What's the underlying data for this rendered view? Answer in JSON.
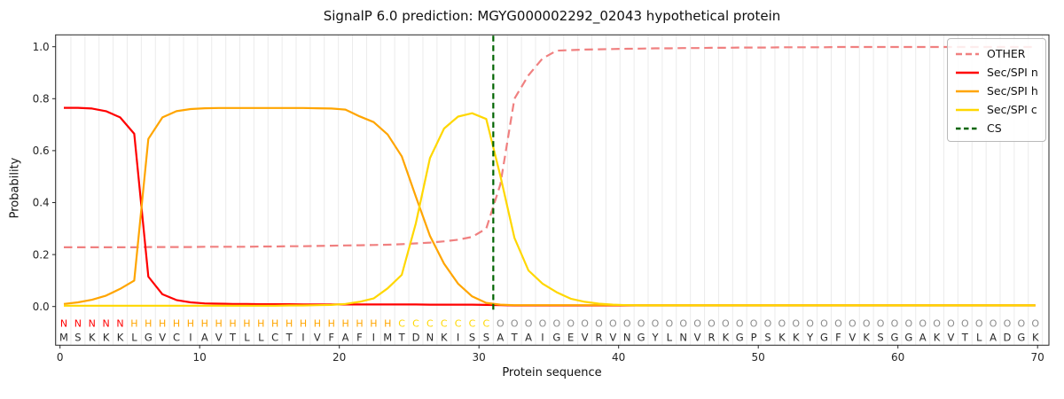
{
  "figure": {
    "title": "SignalP 6.0 prediction: MGYG000002292_02043 hypothetical protein",
    "xlabel": "Protein sequence",
    "ylabel": "Probability"
  },
  "chart_data": {
    "type": "line",
    "title": "SignalP 6.0 prediction: MGYG000002292_02043 hypothetical protein",
    "xlabel": "Protein sequence",
    "ylabel": "Probability",
    "x_ticks": [
      0,
      10,
      20,
      30,
      40,
      50,
      60,
      70
    ],
    "y_ticks": [
      0.0,
      0.2,
      0.4,
      0.6,
      0.8,
      1.0
    ],
    "ylim": [
      0.0,
      1.0
    ],
    "grid": "vertical-per-residue",
    "legend_position": "upper right",
    "n_residues": 70,
    "cs_position": 31.5,
    "sequence": "MSKKKLGVCIAVTLLCTIVFAFIMTDNKISSATAIGEVRVNGYLNVRKGPSKKYGFVKSGGAKVTLADGK",
    "region_labels": "NNNNNHHHHHHHHHHHHHHHHHHHCCCCCCCOOOOOOOOOOOOOOOOOOOOOOOOOOOOOOOOOOOOOO",
    "regions": [
      {
        "label": "N",
        "start": 1,
        "end": 5,
        "color": "#ff0000"
      },
      {
        "label": "H",
        "start": 6,
        "end": 24,
        "color": "#ffa500"
      },
      {
        "label": "C",
        "start": 25,
        "end": 31,
        "color": "#ffd700"
      },
      {
        "label": "O",
        "start": 32,
        "end": 70,
        "color": "#8c8c8c"
      }
    ],
    "series": [
      {
        "name": "OTHER",
        "color": "#f08080",
        "style": "dashed",
        "values": [
          0.228,
          0.228,
          0.228,
          0.228,
          0.228,
          0.228,
          0.229,
          0.229,
          0.229,
          0.229,
          0.23,
          0.23,
          0.23,
          0.23,
          0.231,
          0.231,
          0.232,
          0.232,
          0.233,
          0.234,
          0.235,
          0.236,
          0.237,
          0.238,
          0.24,
          0.243,
          0.246,
          0.251,
          0.257,
          0.268,
          0.3,
          0.47,
          0.8,
          0.89,
          0.955,
          0.985,
          0.987,
          0.989,
          0.99,
          0.991,
          0.992,
          0.993,
          0.994,
          0.994,
          0.995,
          0.995,
          0.996,
          0.996,
          0.997,
          0.997,
          0.997,
          0.998,
          0.998,
          0.998,
          0.998,
          0.999,
          0.999,
          0.999,
          0.999,
          0.999,
          0.999,
          0.999,
          0.999,
          0.999,
          0.999,
          0.999,
          0.999,
          0.999,
          0.999,
          0.999
        ]
      },
      {
        "name": "Sec/SPI n",
        "color": "#ff0000",
        "style": "solid",
        "values": [
          0.765,
          0.765,
          0.762,
          0.752,
          0.728,
          0.665,
          0.115,
          0.047,
          0.025,
          0.016,
          0.012,
          0.011,
          0.01,
          0.01,
          0.009,
          0.009,
          0.009,
          0.008,
          0.008,
          0.008,
          0.008,
          0.008,
          0.008,
          0.008,
          0.008,
          0.008,
          0.007,
          0.007,
          0.007,
          0.007,
          0.006,
          0.005,
          0.004,
          0.004,
          0.004,
          0.004,
          0.004,
          0.004,
          0.004,
          0.004,
          0.004,
          0.004,
          0.004,
          0.004,
          0.004,
          0.004,
          0.004,
          0.004,
          0.004,
          0.004,
          0.004,
          0.004,
          0.004,
          0.004,
          0.004,
          0.004,
          0.004,
          0.004,
          0.004,
          0.004,
          0.004,
          0.004,
          0.004,
          0.004,
          0.004,
          0.004,
          0.004,
          0.004,
          0.004,
          0.004
        ]
      },
      {
        "name": "Sec/SPI h",
        "color": "#ffa500",
        "style": "solid",
        "values": [
          0.01,
          0.016,
          0.026,
          0.042,
          0.068,
          0.1,
          0.645,
          0.728,
          0.752,
          0.76,
          0.763,
          0.764,
          0.764,
          0.764,
          0.764,
          0.764,
          0.764,
          0.764,
          0.763,
          0.762,
          0.758,
          0.732,
          0.71,
          0.662,
          0.578,
          0.423,
          0.272,
          0.165,
          0.088,
          0.039,
          0.014,
          0.007,
          0.005,
          0.005,
          0.005,
          0.005,
          0.005,
          0.005,
          0.005,
          0.005,
          0.005,
          0.005,
          0.005,
          0.005,
          0.005,
          0.005,
          0.005,
          0.005,
          0.005,
          0.005,
          0.005,
          0.005,
          0.005,
          0.005,
          0.005,
          0.005,
          0.005,
          0.005,
          0.005,
          0.005,
          0.005,
          0.005,
          0.005,
          0.005,
          0.005,
          0.005,
          0.005,
          0.005,
          0.005,
          0.005
        ]
      },
      {
        "name": "Sec/SPI c",
        "color": "#ffd700",
        "style": "solid",
        "values": [
          0.003,
          0.003,
          0.003,
          0.003,
          0.003,
          0.003,
          0.003,
          0.003,
          0.003,
          0.003,
          0.003,
          0.003,
          0.003,
          0.003,
          0.003,
          0.003,
          0.004,
          0.004,
          0.005,
          0.006,
          0.01,
          0.018,
          0.031,
          0.07,
          0.122,
          0.32,
          0.571,
          0.685,
          0.731,
          0.744,
          0.722,
          0.503,
          0.264,
          0.139,
          0.088,
          0.055,
          0.03,
          0.018,
          0.011,
          0.007,
          0.005,
          0.004,
          0.004,
          0.004,
          0.004,
          0.004,
          0.004,
          0.004,
          0.004,
          0.004,
          0.004,
          0.004,
          0.004,
          0.004,
          0.004,
          0.004,
          0.004,
          0.004,
          0.004,
          0.004,
          0.004,
          0.004,
          0.004,
          0.004,
          0.004,
          0.004,
          0.004,
          0.004,
          0.004,
          0.004
        ]
      },
      {
        "name": "CS",
        "color": "#006400",
        "style": "dashed-vertical",
        "x_position": 31.5
      }
    ]
  }
}
